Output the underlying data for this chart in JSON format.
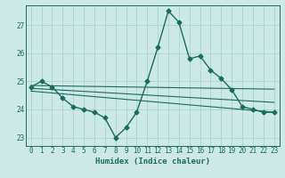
{
  "xlabel": "Humidex (Indice chaleur)",
  "ylabel": "",
  "background_color": "#cce9e5",
  "grid_color": "#a8d4cf",
  "line_color": "#1a6b5e",
  "xlim": [
    -0.5,
    23.5
  ],
  "ylim": [
    22.7,
    27.7
  ],
  "xticks": [
    0,
    1,
    2,
    3,
    4,
    5,
    6,
    7,
    8,
    9,
    10,
    11,
    12,
    13,
    14,
    15,
    16,
    17,
    18,
    19,
    20,
    21,
    22,
    23
  ],
  "yticks": [
    23,
    24,
    25,
    26,
    27
  ],
  "main_series": {
    "x": [
      0,
      1,
      2,
      3,
      4,
      5,
      6,
      7,
      8,
      9,
      10,
      11,
      12,
      13,
      14,
      15,
      16,
      17,
      18,
      19,
      20,
      21,
      22,
      23
    ],
    "y": [
      24.8,
      25.0,
      24.8,
      24.4,
      24.1,
      24.0,
      23.9,
      23.7,
      23.0,
      23.35,
      23.9,
      25.0,
      26.2,
      27.5,
      27.1,
      25.8,
      25.9,
      25.4,
      25.1,
      24.7,
      24.1,
      24.0,
      23.9,
      23.9
    ],
    "marker": "D",
    "markersize": 2.5,
    "linewidth": 1.0
  },
  "straight_lines": [
    {
      "x0": 0,
      "y0": 24.85,
      "x1": 23,
      "y1": 24.72
    },
    {
      "x0": 0,
      "y0": 24.75,
      "x1": 23,
      "y1": 24.25
    },
    {
      "x0": 0,
      "y0": 24.65,
      "x1": 23,
      "y1": 23.9
    }
  ]
}
